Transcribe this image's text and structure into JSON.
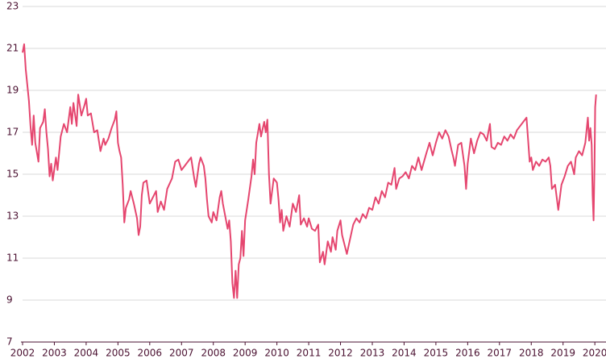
{
  "chart_data": {
    "type": "line",
    "x": [
      2002.0,
      2002.05,
      2002.1,
      2002.2,
      2002.25,
      2002.3,
      2002.35,
      2002.4,
      2002.5,
      2002.55,
      2002.65,
      2002.7,
      2002.75,
      2002.8,
      2002.85,
      2002.9,
      2002.95,
      2003.05,
      2003.1,
      2003.2,
      2003.3,
      2003.4,
      2003.5,
      2003.55,
      2003.6,
      2003.7,
      2003.75,
      2003.85,
      2003.95,
      2004.0,
      2004.05,
      2004.15,
      2004.25,
      2004.35,
      2004.45,
      2004.55,
      2004.6,
      2004.7,
      2004.8,
      2004.9,
      2004.95,
      2005.0,
      2005.05,
      2005.1,
      2005.15,
      2005.2,
      2005.25,
      2005.35,
      2005.4,
      2005.5,
      2005.6,
      2005.65,
      2005.7,
      2005.75,
      2005.8,
      2005.9,
      2006.0,
      2006.1,
      2006.2,
      2006.25,
      2006.35,
      2006.45,
      2006.55,
      2006.7,
      2006.8,
      2006.9,
      2007.0,
      2007.1,
      2007.2,
      2007.3,
      2007.4,
      2007.45,
      2007.55,
      2007.6,
      2007.7,
      2007.75,
      2007.8,
      2007.85,
      2007.95,
      2008.0,
      2008.1,
      2008.2,
      2008.25,
      2008.3,
      2008.4,
      2008.45,
      2008.5,
      2008.55,
      2008.6,
      2008.65,
      2008.7,
      2008.75,
      2008.8,
      2008.85,
      2008.9,
      2008.95,
      2009.0,
      2009.1,
      2009.2,
      2009.25,
      2009.3,
      2009.35,
      2009.45,
      2009.5,
      2009.6,
      2009.65,
      2009.7,
      2009.75,
      2009.8,
      2009.9,
      2010.0,
      2010.05,
      2010.1,
      2010.15,
      2010.2,
      2010.3,
      2010.4,
      2010.5,
      2010.6,
      2010.7,
      2010.75,
      2010.85,
      2010.95,
      2011.0,
      2011.1,
      2011.2,
      2011.3,
      2011.35,
      2011.45,
      2011.5,
      2011.6,
      2011.7,
      2011.75,
      2011.85,
      2011.9,
      2012.0,
      2012.05,
      2012.15,
      2012.2,
      2012.3,
      2012.4,
      2012.5,
      2012.6,
      2012.7,
      2012.8,
      2012.9,
      2013.0,
      2013.1,
      2013.2,
      2013.3,
      2013.4,
      2013.5,
      2013.6,
      2013.7,
      2013.75,
      2013.85,
      2013.95,
      2014.05,
      2014.15,
      2014.25,
      2014.35,
      2014.45,
      2014.55,
      2014.7,
      2014.8,
      2014.9,
      2015.0,
      2015.1,
      2015.2,
      2015.3,
      2015.4,
      2015.5,
      2015.55,
      2015.6,
      2015.7,
      2015.8,
      2015.9,
      2015.95,
      2016.0,
      2016.1,
      2016.2,
      2016.3,
      2016.4,
      2016.5,
      2016.6,
      2016.7,
      2016.75,
      2016.85,
      2016.95,
      2017.05,
      2017.15,
      2017.25,
      2017.35,
      2017.45,
      2017.55,
      2017.65,
      2017.75,
      2017.85,
      2017.95,
      2018.0,
      2018.05,
      2018.15,
      2018.25,
      2018.35,
      2018.45,
      2018.55,
      2018.6,
      2018.65,
      2018.75,
      2018.8,
      2018.85,
      2018.95,
      2019.05,
      2019.15,
      2019.25,
      2019.35,
      2019.4,
      2019.5,
      2019.6,
      2019.7,
      2019.78,
      2019.82,
      2019.86,
      2019.9,
      2019.93,
      2019.96,
      2019.99,
      2020.01,
      2020.04
    ],
    "series": [
      {
        "color": "#e5466f",
        "values": [
          20.8,
          21.2,
          20.0,
          18.5,
          17.3,
          16.4,
          17.8,
          16.5,
          15.6,
          17.2,
          17.5,
          18.1,
          17.0,
          16.2,
          14.9,
          15.5,
          14.7,
          15.8,
          15.2,
          16.8,
          17.4,
          17.0,
          18.2,
          17.4,
          18.4,
          17.3,
          18.8,
          17.8,
          18.3,
          18.6,
          17.8,
          17.9,
          17.0,
          17.1,
          16.1,
          16.7,
          16.4,
          16.7,
          17.2,
          17.6,
          18.0,
          16.5,
          16.1,
          15.8,
          14.5,
          12.7,
          13.4,
          13.8,
          14.2,
          13.6,
          12.9,
          12.1,
          12.5,
          14.0,
          14.6,
          14.7,
          13.6,
          13.9,
          14.2,
          13.2,
          13.7,
          13.3,
          14.3,
          14.8,
          15.6,
          15.7,
          15.2,
          15.4,
          15.6,
          15.8,
          14.8,
          14.4,
          15.5,
          15.8,
          15.4,
          14.8,
          13.8,
          13.0,
          12.7,
          13.2,
          12.8,
          13.9,
          14.2,
          13.6,
          12.8,
          12.4,
          12.8,
          11.8,
          9.8,
          9.1,
          10.4,
          9.1,
          10.7,
          11.0,
          12.3,
          11.1,
          12.8,
          13.8,
          14.9,
          15.7,
          15.0,
          16.5,
          17.4,
          16.8,
          17.5,
          17.0,
          17.6,
          15.0,
          13.6,
          14.8,
          14.6,
          13.8,
          12.7,
          13.3,
          12.3,
          13.0,
          12.5,
          13.6,
          13.2,
          14.0,
          12.6,
          12.9,
          12.5,
          12.9,
          12.4,
          12.3,
          12.6,
          10.8,
          11.3,
          10.7,
          11.8,
          11.3,
          12.0,
          11.4,
          12.3,
          12.8,
          12.1,
          11.5,
          11.2,
          11.9,
          12.6,
          12.9,
          12.7,
          13.1,
          12.9,
          13.4,
          13.3,
          13.9,
          13.6,
          14.2,
          13.9,
          14.6,
          14.5,
          15.3,
          14.3,
          14.8,
          14.9,
          15.1,
          14.8,
          15.4,
          15.2,
          15.8,
          15.2,
          16.0,
          16.5,
          15.9,
          16.5,
          17.0,
          16.7,
          17.1,
          16.8,
          16.1,
          15.8,
          15.4,
          16.4,
          16.5,
          15.4,
          14.3,
          15.5,
          16.7,
          16.0,
          16.6,
          17.0,
          16.9,
          16.6,
          17.4,
          16.3,
          16.2,
          16.5,
          16.4,
          16.8,
          16.6,
          16.9,
          16.7,
          17.1,
          17.3,
          17.5,
          17.7,
          15.6,
          15.8,
          15.2,
          15.6,
          15.4,
          15.7,
          15.6,
          15.8,
          15.4,
          14.3,
          14.5,
          13.9,
          13.3,
          14.5,
          14.9,
          15.4,
          15.6,
          15.0,
          15.8,
          16.1,
          15.9,
          16.5,
          17.7,
          16.6,
          17.2,
          16.4,
          14.0,
          12.8,
          15.5,
          18.2,
          18.8
        ]
      }
    ],
    "xlim": [
      2002,
      2020.3
    ],
    "xticks": [
      2002,
      2003,
      2004,
      2005,
      2006,
      2007,
      2008,
      2009,
      2010,
      2011,
      2012,
      2013,
      2014,
      2015,
      2016,
      2017,
      2018,
      2019,
      2020
    ],
    "ylim": [
      7,
      23
    ],
    "yticks": [
      7,
      9,
      11,
      13,
      15,
      17,
      19,
      21,
      23
    ],
    "grid": true
  }
}
